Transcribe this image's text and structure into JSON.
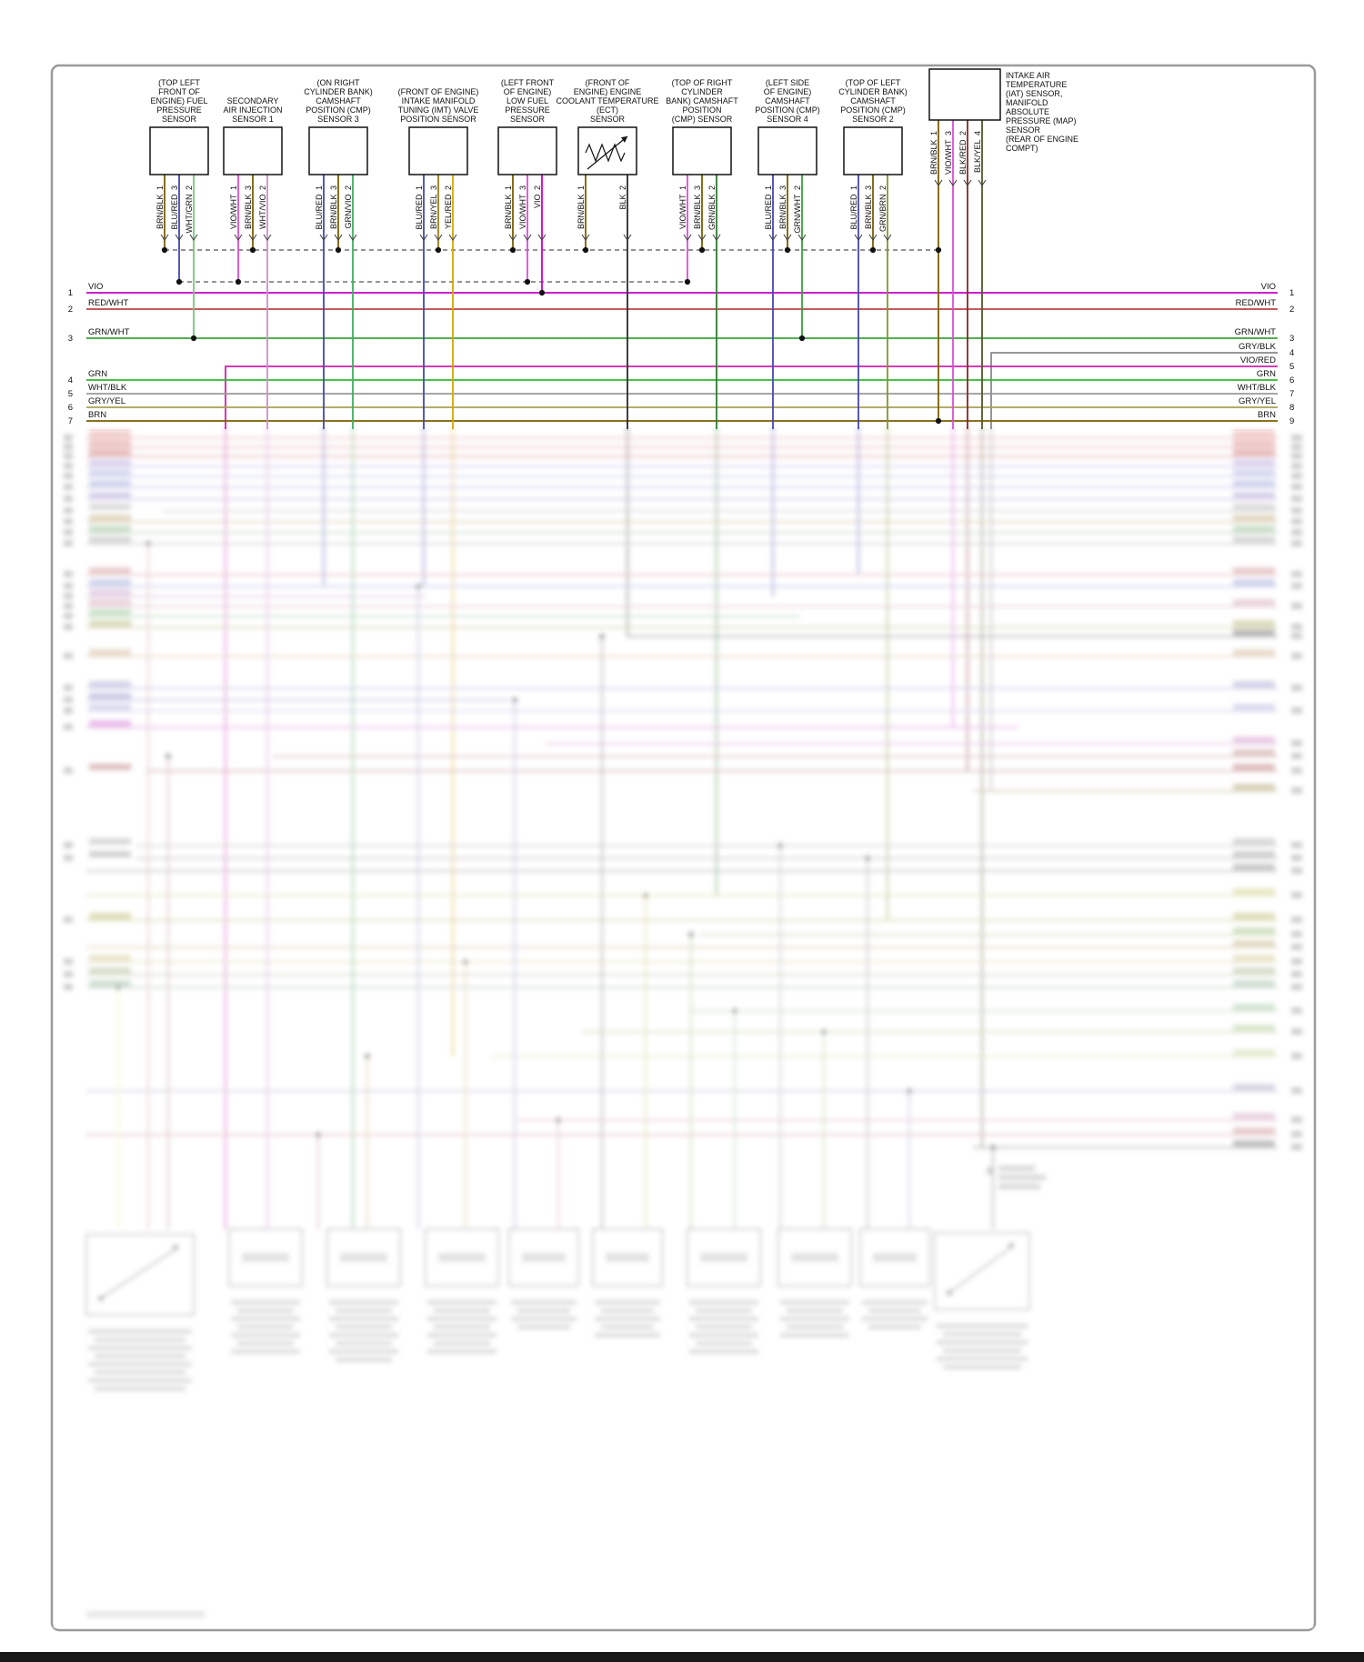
{
  "diagram": {
    "sensors": [
      {
        "id": "fuel-pressure-sensor",
        "header_lines": [
          "(TOP LEFT",
          "FRONT OF",
          "ENGINE) FUEL",
          "PRESSURE",
          "SENSOR"
        ],
        "pins": [
          {
            "wire": "BRN/BLK",
            "num": "1"
          },
          {
            "wire": "BLU/RED",
            "num": "3"
          },
          {
            "wire": "WHT/GRN",
            "num": "2"
          }
        ]
      },
      {
        "id": "secondary-air-injection-sensor-1",
        "header_lines": [
          "SECONDARY",
          "AIR INJECTION",
          "SENSOR 1"
        ],
        "pins": [
          {
            "wire": "VIO/WHT",
            "num": "1"
          },
          {
            "wire": "BRN/BLK",
            "num": "3"
          },
          {
            "wire": "WHT/VIO",
            "num": "2"
          }
        ]
      },
      {
        "id": "cmp-sensor-3",
        "header_lines": [
          "(ON RIGHT",
          "CYLINDER BANK)",
          "CAMSHAFT",
          "POSITION (CMP)",
          "SENSOR 3"
        ],
        "pins": [
          {
            "wire": "BLU/RED",
            "num": "1"
          },
          {
            "wire": "BRN/BLK",
            "num": "3"
          },
          {
            "wire": "GRN/VIO",
            "num": "2"
          }
        ]
      },
      {
        "id": "imt-valve-position-sensor",
        "header_lines": [
          "(FRONT OF ENGINE)",
          "INTAKE MANIFOLD",
          "TUNING (IMT) VALVE",
          "POSITION SENSOR"
        ],
        "pins": [
          {
            "wire": "BLU/RED",
            "num": "1"
          },
          {
            "wire": "BRN/YEL",
            "num": "3"
          },
          {
            "wire": "YEL/RED",
            "num": "2"
          }
        ]
      },
      {
        "id": "low-fuel-pressure-sensor",
        "header_lines": [
          "(LEFT FRONT",
          "OF ENGINE)",
          "LOW FUEL",
          "PRESSURE",
          "SENSOR"
        ],
        "pins": [
          {
            "wire": "BRN/BLK",
            "num": "1"
          },
          {
            "wire": "VIO/WHT",
            "num": "3"
          },
          {
            "wire": "VIO",
            "num": "2"
          }
        ]
      },
      {
        "id": "ect-sensor",
        "header_lines": [
          "(FRONT OF",
          "ENGINE) ENGINE",
          "COOLANT TEMPERATURE",
          "(ECT)",
          "SENSOR"
        ],
        "pins": [
          {
            "wire": "BRN/BLK",
            "num": "1"
          },
          {
            "wire": "BLK",
            "num": "2"
          }
        ]
      },
      {
        "id": "cmp-sensor-right-bank",
        "header_lines": [
          "(TOP OF RIGHT",
          "CYLINDER",
          "BANK) CAMSHAFT",
          "POSITION",
          "(CMP) SENSOR"
        ],
        "pins": [
          {
            "wire": "VIO/WHT",
            "num": "1"
          },
          {
            "wire": "BRN/BLK",
            "num": "3"
          },
          {
            "wire": "GRN/BLK",
            "num": "2"
          }
        ]
      },
      {
        "id": "cmp-sensor-4",
        "header_lines": [
          "(LEFT SIDE",
          "OF ENGINE)",
          "CAMSHAFT",
          "POSITION (CMP)",
          "SENSOR 4"
        ],
        "pins": [
          {
            "wire": "BLU/RED",
            "num": "1"
          },
          {
            "wire": "BRN/BLK",
            "num": "3"
          },
          {
            "wire": "GRN/WHT",
            "num": "2"
          }
        ]
      },
      {
        "id": "cmp-sensor-2",
        "header_lines": [
          "(TOP OF LEFT",
          "CYLINDER BANK)",
          "CAMSHAFT",
          "POSITION (CMP)",
          "SENSOR 2"
        ],
        "pins": [
          {
            "wire": "BLU/RED",
            "num": "1"
          },
          {
            "wire": "BRN/BLK",
            "num": "3"
          },
          {
            "wire": "GRN/BRN",
            "num": "2"
          }
        ]
      },
      {
        "id": "iat-map-sensor",
        "header_lines": [],
        "note_lines": [
          "INTAKE AIR",
          "TEMPERATURE",
          "(IAT) SENSOR,",
          "MANIFOLD",
          "ABSOLUTE",
          "PRESSURE (MAP)",
          "SENSOR",
          "(REAR OF ENGINE",
          "COMPT)"
        ],
        "pins": [
          {
            "wire": "BRN/BLK",
            "num": "1"
          },
          {
            "wire": "VIO/WHT",
            "num": "3"
          },
          {
            "wire": "BLK/RED",
            "num": "2"
          },
          {
            "wire": "BLK/YEL",
            "num": "4"
          }
        ]
      }
    ],
    "left_bus": [
      {
        "num": "1",
        "label": "VIO"
      },
      {
        "num": "2",
        "label": "RED/WHT"
      },
      {
        "num": "3",
        "label": "GRN/WHT"
      },
      {
        "num": "4",
        "label": "GRN"
      },
      {
        "num": "5",
        "label": "WHT/BLK"
      },
      {
        "num": "6",
        "label": "GRY/YEL"
      },
      {
        "num": "7",
        "label": "BRN"
      }
    ],
    "right_bus": [
      {
        "num": "1",
        "label": "VIO"
      },
      {
        "num": "2",
        "label": "RED/WHT"
      },
      {
        "num": "3",
        "label": "GRN/WHT"
      },
      {
        "num": "4",
        "label": "GRY/BLK"
      },
      {
        "num": "5",
        "label": "VIO/RED"
      },
      {
        "num": "6",
        "label": "GRN"
      },
      {
        "num": "7",
        "label": "WHT/BLK"
      },
      {
        "num": "8",
        "label": "GRY/YEL"
      },
      {
        "num": "9",
        "label": "BRN"
      }
    ],
    "wire_colors": {
      "BRN/BLK": "#7a5f00",
      "BLU/RED": "#4646b4",
      "WHT/GRN": "#7cc47c",
      "VIO/WHT": "#d84fd8",
      "WHT/VIO": "#cc8fcc",
      "GRN/VIO": "#3fae5e",
      "BRN/YEL": "#9c7a14",
      "YEL/RED": "#d9a400",
      "VIO": "#c800c8",
      "BLK": "#2a2a2a",
      "GRN/BLK": "#2e7d32",
      "GRN/WHT": "#3aa03a",
      "GRN/BRN": "#7a9a2e",
      "BLK/RED": "#8b2525",
      "BLK/YEL": "#55552a",
      "RED/WHT": "#b84444",
      "GRY/BLK": "#8a8a8a",
      "WHT/BLK": "#9a9a9a",
      "GRY/YEL": "#a8a055",
      "BRN": "#7d5c00",
      "VIO/RED": "#cc22aa",
      "GRN": "#2dbb2d"
    },
    "blurred_lower_section": true
  }
}
